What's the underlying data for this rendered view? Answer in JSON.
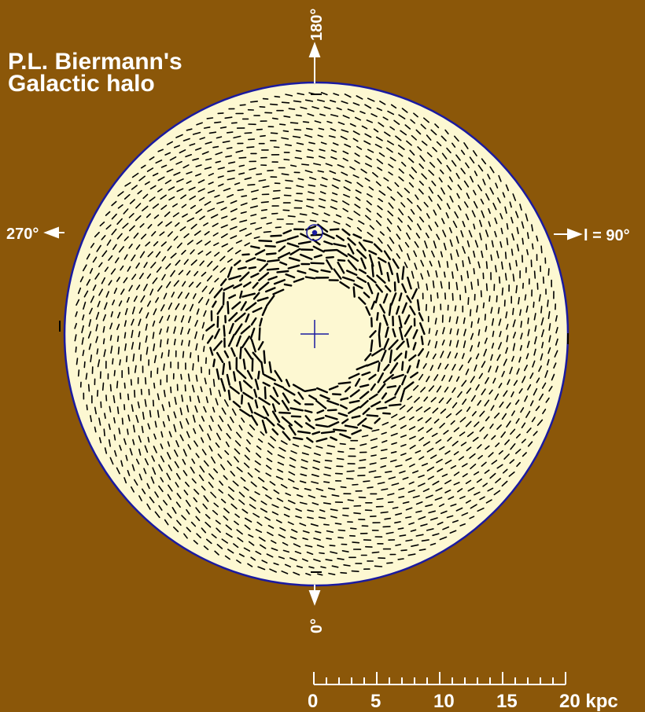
{
  "title": {
    "line1": "P.L. Biermann's",
    "line2": "Galactic halo"
  },
  "directions": {
    "top": "180°",
    "left": "270°",
    "right": "l = 90°",
    "bottom": "0°"
  },
  "scale_bar": {
    "labels": [
      "0",
      "5",
      "10",
      "15",
      "20 kpc"
    ]
  }
}
